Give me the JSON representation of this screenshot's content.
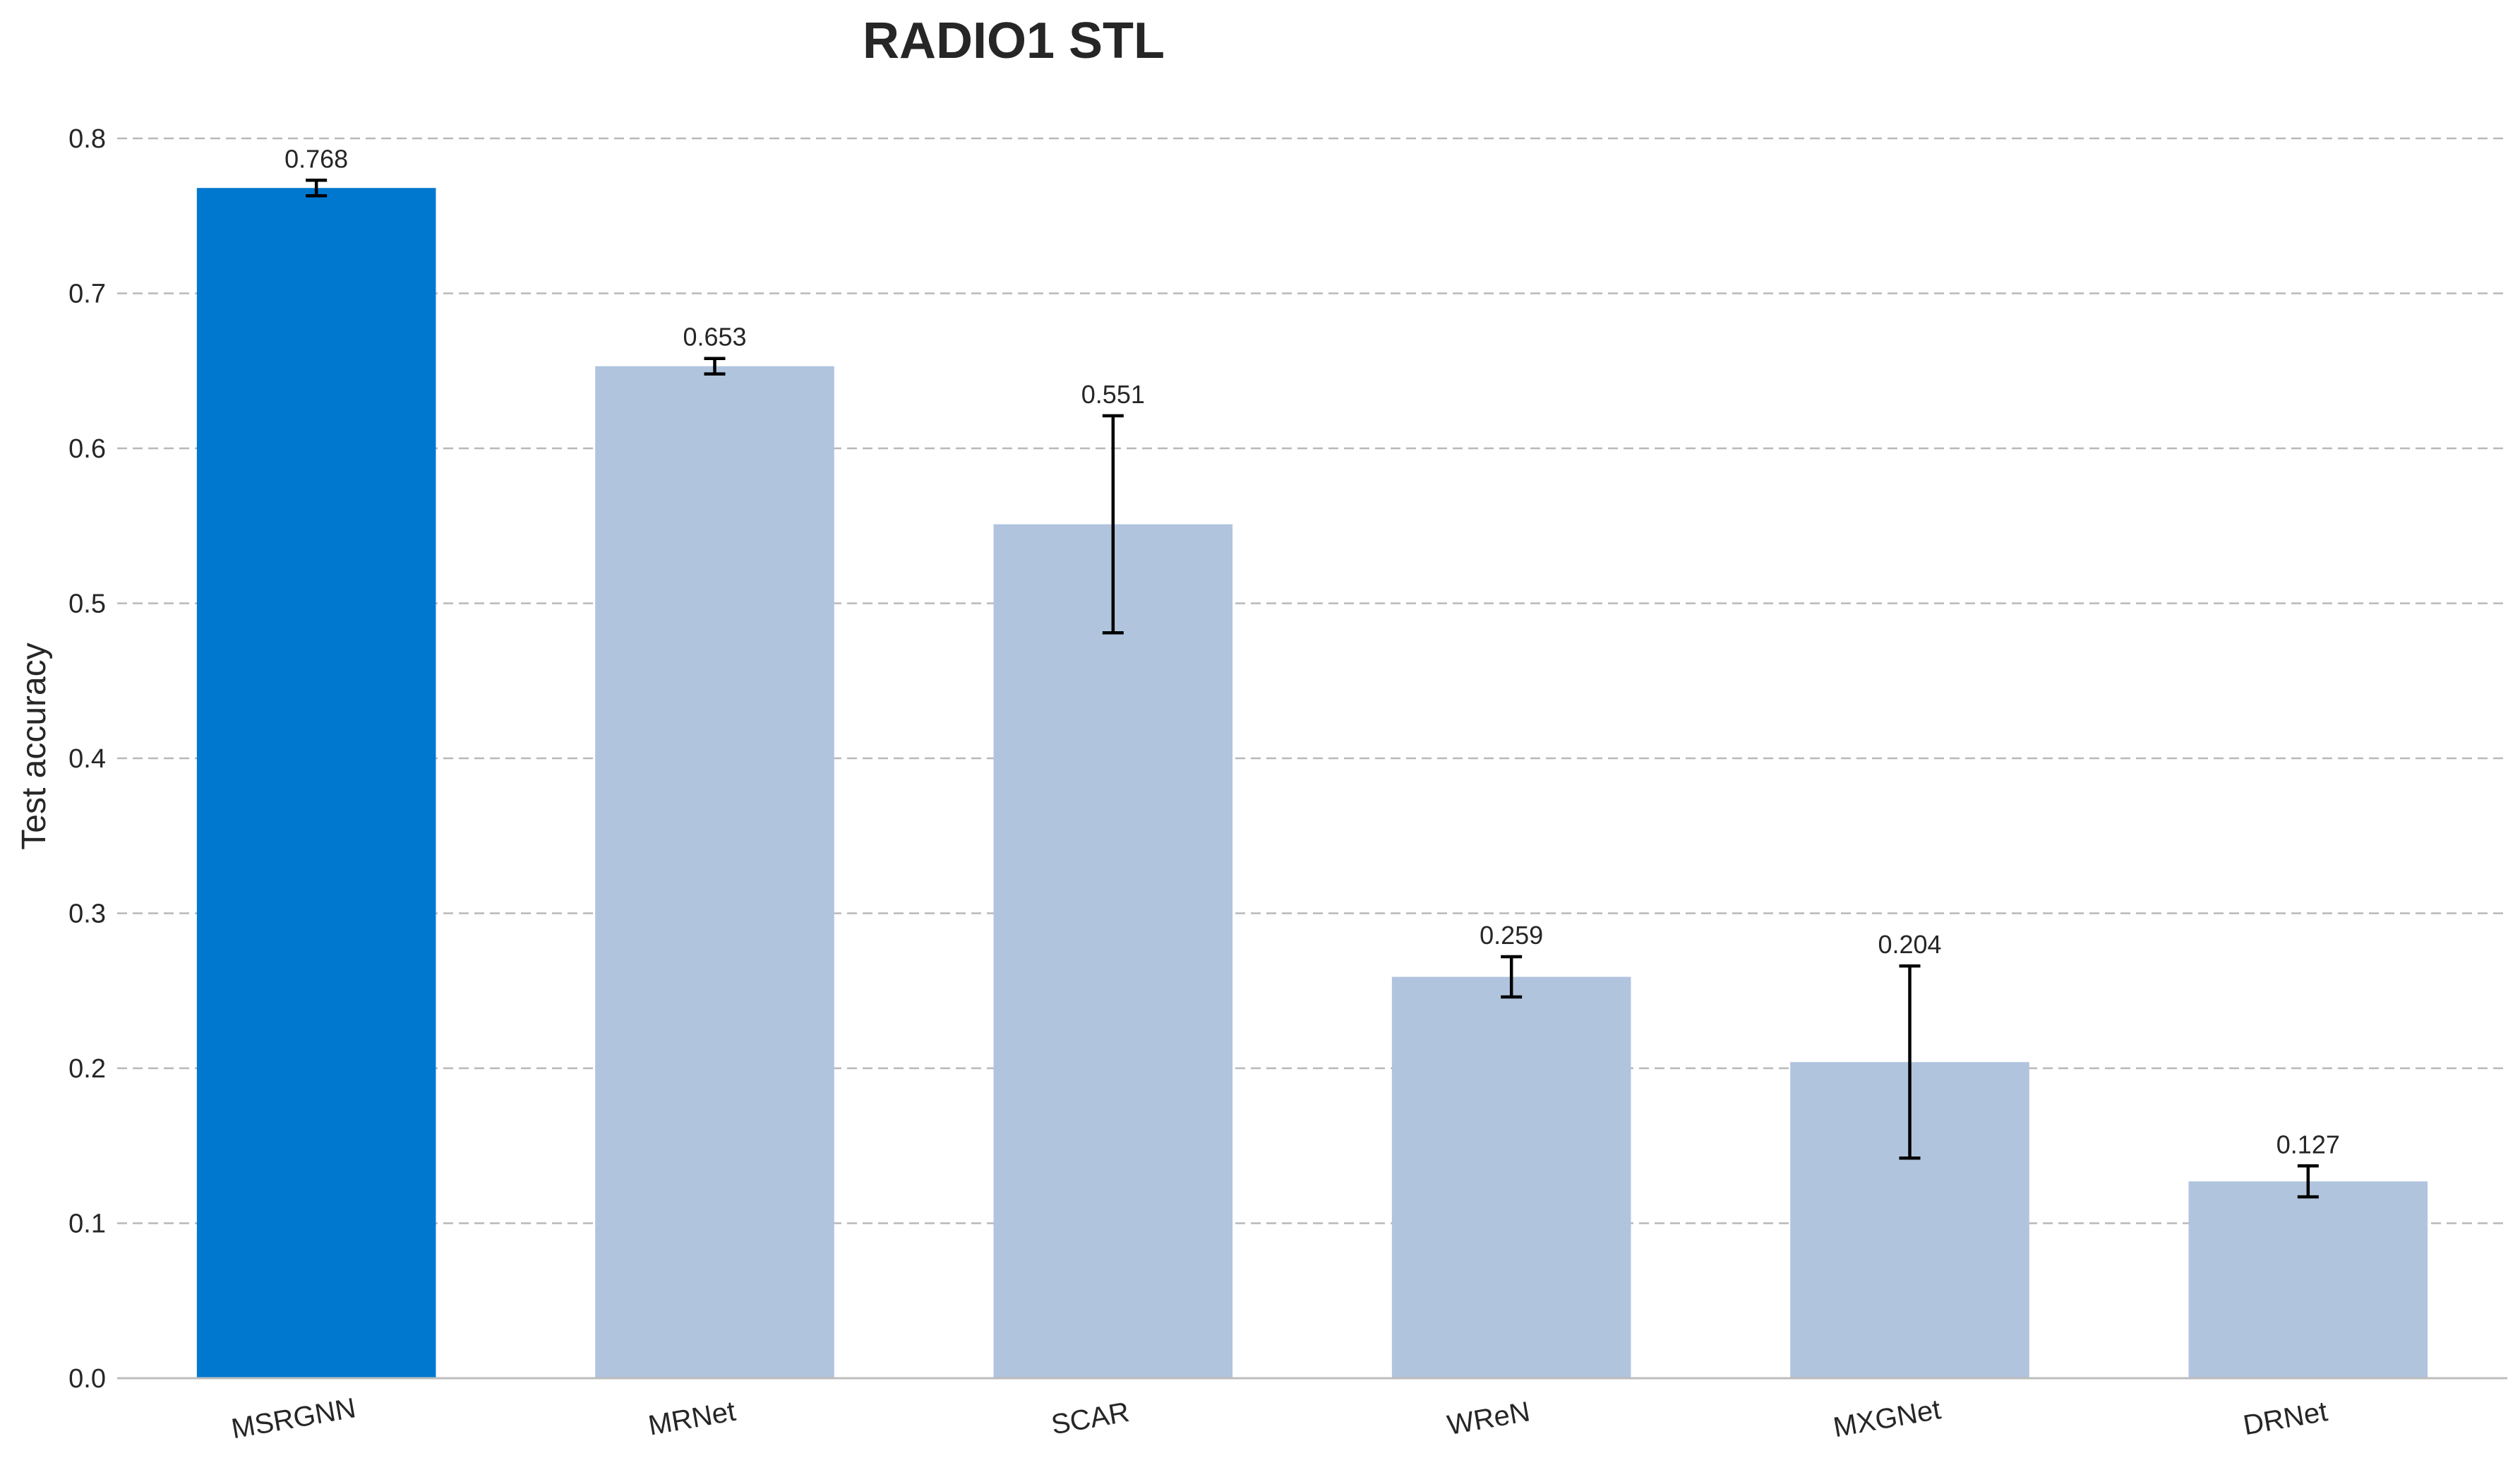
{
  "chart_data": {
    "type": "bar",
    "title": "RADIO1 STL",
    "xlabel": "",
    "ylabel": "Test accuracy",
    "ylim": [
      0,
      0.8
    ],
    "yticks": [
      0.0,
      0.1,
      0.2,
      0.3,
      0.4,
      0.5,
      0.6,
      0.7,
      0.8
    ],
    "ytick_labels": [
      "0.0",
      "0.1",
      "0.2",
      "0.3",
      "0.4",
      "0.5",
      "0.6",
      "0.7",
      "0.8"
    ],
    "grid": true,
    "categories": [
      "MSRGNN",
      "MRNet",
      "SCAR",
      "WReN",
      "MXGNet",
      "DRNet"
    ],
    "values": [
      0.768,
      0.653,
      0.551,
      0.259,
      0.204,
      0.127
    ],
    "value_labels": [
      "0.768",
      "0.653",
      "0.551",
      "0.259",
      "0.204",
      "0.127"
    ],
    "error": [
      0.005,
      0.005,
      0.07,
      0.013,
      0.062,
      0.01
    ],
    "colors": [
      "#0078d0",
      "#b0c4de",
      "#b0c4de",
      "#b0c4de",
      "#b0c4de",
      "#b0c4de"
    ],
    "error_color": "#000000"
  }
}
